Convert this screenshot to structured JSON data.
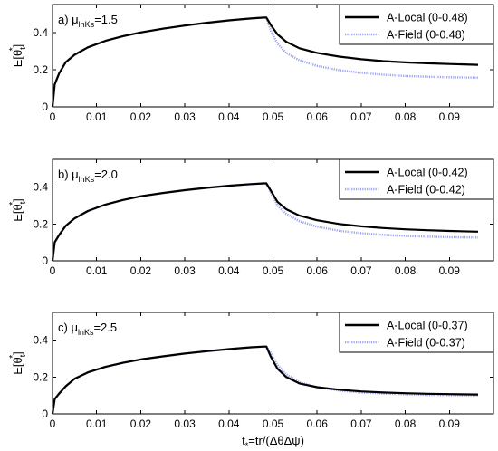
{
  "chart_data": [
    {
      "type": "line",
      "panel_label": "a) μ",
      "panel_label_sub": "lnKs",
      "panel_label_val": "=1.5",
      "ylabel": "E[θ",
      "ylabel_sub": "t",
      "ylabel_sup": "*",
      "ylabel_end": "]",
      "xlim": [
        0,
        0.1
      ],
      "ylim": [
        0,
        0.55
      ],
      "xticks": [
        0,
        0.01,
        0.02,
        0.03,
        0.04,
        0.05,
        0.06,
        0.07,
        0.08,
        0.09
      ],
      "xtick_labels": [
        "0",
        "0.01",
        "0.02",
        "0.03",
        "0.04",
        "0.05",
        "0.06",
        "0.07",
        "0.08",
        "0.09"
      ],
      "yticks": [
        0,
        0.2,
        0.4
      ],
      "ytick_labels": [
        "0",
        "0.2",
        "0.4"
      ],
      "legend_position": "top-right",
      "series": [
        {
          "name": "A-Local (0-0.48)",
          "color": "#000000",
          "style": "solid",
          "x": [
            0,
            0.0005,
            0.0015,
            0.003,
            0.005,
            0.008,
            0.012,
            0.016,
            0.02,
            0.025,
            0.03,
            0.035,
            0.04,
            0.045,
            0.048,
            0.0485,
            0.0495,
            0.051,
            0.053,
            0.056,
            0.06,
            0.065,
            0.07,
            0.075,
            0.08,
            0.085,
            0.09,
            0.0965
          ],
          "y": [
            0,
            0.12,
            0.18,
            0.24,
            0.28,
            0.32,
            0.355,
            0.38,
            0.4,
            0.42,
            0.437,
            0.452,
            0.465,
            0.475,
            0.48,
            0.48,
            0.44,
            0.39,
            0.35,
            0.315,
            0.29,
            0.27,
            0.256,
            0.246,
            0.239,
            0.234,
            0.23,
            0.226
          ]
        },
        {
          "name": "A-Field (0-0.48)",
          "color": "#9aa2f0",
          "style": "dotted",
          "x": [
            0,
            0.0005,
            0.0015,
            0.003,
            0.005,
            0.008,
            0.012,
            0.016,
            0.02,
            0.025,
            0.03,
            0.035,
            0.04,
            0.045,
            0.048,
            0.0485,
            0.0495,
            0.051,
            0.053,
            0.056,
            0.06,
            0.065,
            0.07,
            0.075,
            0.08,
            0.085,
            0.09,
            0.0965
          ],
          "y": [
            0,
            0.12,
            0.18,
            0.24,
            0.28,
            0.32,
            0.355,
            0.38,
            0.4,
            0.42,
            0.437,
            0.452,
            0.465,
            0.475,
            0.48,
            0.48,
            0.41,
            0.34,
            0.29,
            0.25,
            0.22,
            0.197,
            0.183,
            0.173,
            0.166,
            0.162,
            0.159,
            0.157
          ]
        }
      ]
    },
    {
      "type": "line",
      "panel_label": "b) μ",
      "panel_label_sub": "lnKs",
      "panel_label_val": "=2.0",
      "ylabel": "E[θ",
      "ylabel_sub": "t",
      "ylabel_sup": "*",
      "ylabel_end": "]",
      "xlim": [
        0,
        0.1
      ],
      "ylim": [
        0,
        0.55
      ],
      "xticks": [
        0,
        0.01,
        0.02,
        0.03,
        0.04,
        0.05,
        0.06,
        0.07,
        0.08,
        0.09
      ],
      "xtick_labels": [
        "0",
        "0.01",
        "0.02",
        "0.03",
        "0.04",
        "0.05",
        "0.06",
        "0.07",
        "0.08",
        "0.09"
      ],
      "yticks": [
        0,
        0.2,
        0.4
      ],
      "ytick_labels": [
        "0",
        "0.2",
        "0.4"
      ],
      "legend_position": "top-right",
      "series": [
        {
          "name": "A-Local (0-0.42)",
          "color": "#000000",
          "style": "solid",
          "x": [
            0,
            0.0005,
            0.0015,
            0.003,
            0.005,
            0.008,
            0.012,
            0.016,
            0.02,
            0.025,
            0.03,
            0.035,
            0.04,
            0.045,
            0.048,
            0.0485,
            0.0495,
            0.051,
            0.053,
            0.056,
            0.06,
            0.065,
            0.07,
            0.075,
            0.08,
            0.085,
            0.09,
            0.0965
          ],
          "y": [
            0,
            0.1,
            0.14,
            0.19,
            0.23,
            0.27,
            0.305,
            0.33,
            0.35,
            0.368,
            0.383,
            0.396,
            0.407,
            0.416,
            0.42,
            0.42,
            0.38,
            0.32,
            0.28,
            0.245,
            0.22,
            0.2,
            0.187,
            0.178,
            0.171,
            0.166,
            0.162,
            0.158
          ]
        },
        {
          "name": "A-Field (0-0.42)",
          "color": "#9aa2f0",
          "style": "dotted",
          "x": [
            0,
            0.0005,
            0.0015,
            0.003,
            0.005,
            0.008,
            0.012,
            0.016,
            0.02,
            0.025,
            0.03,
            0.035,
            0.04,
            0.045,
            0.048,
            0.0485,
            0.0495,
            0.051,
            0.053,
            0.056,
            0.06,
            0.065,
            0.07,
            0.075,
            0.08,
            0.085,
            0.09,
            0.0965
          ],
          "y": [
            0,
            0.1,
            0.14,
            0.19,
            0.23,
            0.27,
            0.305,
            0.33,
            0.35,
            0.368,
            0.383,
            0.396,
            0.407,
            0.416,
            0.42,
            0.42,
            0.37,
            0.3,
            0.255,
            0.215,
            0.185,
            0.163,
            0.15,
            0.141,
            0.135,
            0.131,
            0.128,
            0.126
          ]
        }
      ]
    },
    {
      "type": "line",
      "panel_label": "c) μ",
      "panel_label_sub": "lnKs",
      "panel_label_val": "=2.5",
      "ylabel": "E[θ",
      "ylabel_sub": "t",
      "ylabel_sup": "*",
      "ylabel_end": "]",
      "xlabel": "t",
      "xlabel_sub": "*",
      "xlabel_rest": "=tr/(ΔθΔψ)",
      "xlim": [
        0,
        0.1
      ],
      "ylim": [
        0,
        0.55
      ],
      "xticks": [
        0,
        0.01,
        0.02,
        0.03,
        0.04,
        0.05,
        0.06,
        0.07,
        0.08,
        0.09
      ],
      "xtick_labels": [
        "0",
        "0.01",
        "0.02",
        "0.03",
        "0.04",
        "0.05",
        "0.06",
        "0.07",
        "0.08",
        "0.09"
      ],
      "yticks": [
        0,
        0.2,
        0.4
      ],
      "ytick_labels": [
        "0",
        "0.2",
        "0.4"
      ],
      "legend_position": "top-right",
      "series": [
        {
          "name": "A-Local (0-0.37)",
          "color": "#000000",
          "style": "solid",
          "x": [
            0,
            0.0005,
            0.0015,
            0.003,
            0.005,
            0.008,
            0.012,
            0.016,
            0.02,
            0.025,
            0.03,
            0.035,
            0.04,
            0.045,
            0.048,
            0.0485,
            0.0495,
            0.051,
            0.053,
            0.056,
            0.06,
            0.065,
            0.07,
            0.075,
            0.08,
            0.085,
            0.09,
            0.0965
          ],
          "y": [
            0,
            0.08,
            0.11,
            0.15,
            0.19,
            0.225,
            0.255,
            0.277,
            0.295,
            0.312,
            0.327,
            0.34,
            0.351,
            0.361,
            0.365,
            0.365,
            0.31,
            0.245,
            0.2,
            0.165,
            0.145,
            0.131,
            0.122,
            0.116,
            0.112,
            0.109,
            0.107,
            0.105
          ]
        },
        {
          "name": "A-Field (0-0.37)",
          "color": "#9aa2f0",
          "style": "dotted",
          "x": [
            0,
            0.0005,
            0.0015,
            0.003,
            0.005,
            0.008,
            0.012,
            0.016,
            0.02,
            0.025,
            0.03,
            0.035,
            0.04,
            0.045,
            0.048,
            0.0485,
            0.0495,
            0.051,
            0.053,
            0.056,
            0.06,
            0.065,
            0.07,
            0.075,
            0.08,
            0.085,
            0.09,
            0.0965
          ],
          "y": [
            0,
            0.08,
            0.11,
            0.15,
            0.19,
            0.225,
            0.255,
            0.277,
            0.295,
            0.312,
            0.327,
            0.34,
            0.351,
            0.361,
            0.365,
            0.365,
            0.33,
            0.265,
            0.215,
            0.172,
            0.145,
            0.126,
            0.116,
            0.11,
            0.106,
            0.103,
            0.101,
            0.1
          ]
        }
      ]
    }
  ]
}
